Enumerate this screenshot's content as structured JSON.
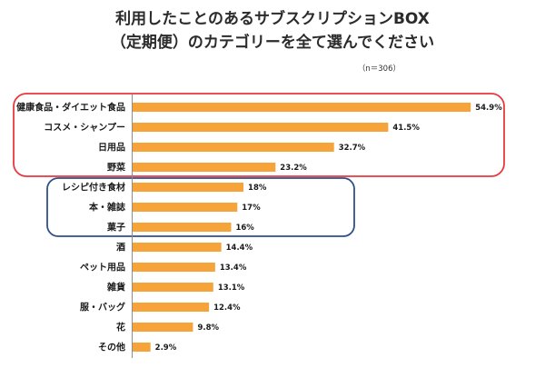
{
  "title": {
    "line1": "利用したことのあるサブスクリプションBOX",
    "line2": "（定期便）のカテゴリーを全て選んでください"
  },
  "sample_size": "（n＝306）",
  "chart_data": {
    "type": "bar",
    "orientation": "horizontal",
    "categories": [
      "健康食品・ダイエット食品",
      "コスメ・シャンプー",
      "日用品",
      "野菜",
      "レシピ付き食材",
      "本・雑誌",
      "菓子",
      "酒",
      "ペット用品",
      "雑貨",
      "服・バッグ",
      "花",
      "その他"
    ],
    "values": [
      54.9,
      41.5,
      32.7,
      23.2,
      18,
      17,
      16,
      14.4,
      13.4,
      13.1,
      12.4,
      9.8,
      2.9
    ],
    "data_labels": [
      "54.9%",
      "41.5%",
      "32.7%",
      "23.2%",
      "18%",
      "17%",
      "16%",
      "14.4%",
      "13.4%",
      "13.1%",
      "12.4%",
      "9.8%",
      "2.9%"
    ],
    "grid": false,
    "bar_color": "#F6A33A",
    "axis_color": "#8c8c8c"
  },
  "highlights": [
    {
      "color": "#E8383D",
      "from": 0,
      "to": 3
    },
    {
      "color": "#2F4F8C",
      "from": 4,
      "to": 6
    }
  ]
}
